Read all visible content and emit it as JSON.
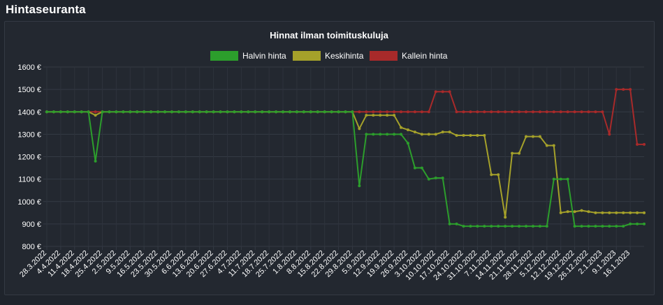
{
  "page": {
    "section_title": "Hintaseuranta"
  },
  "chart_data": {
    "type": "line",
    "title": "Hinnat ilman toimituskuluja",
    "xlabel": "",
    "ylabel": "",
    "y_unit": "€",
    "ylim": [
      800,
      1600
    ],
    "y_ticks": [
      800,
      900,
      1000,
      1100,
      1200,
      1300,
      1400,
      1500,
      1600
    ],
    "y_tick_labels": [
      "800 €",
      "900 €",
      "1000 €",
      "1100 €",
      "1200 €",
      "1300 €",
      "1400 €",
      "1500 €",
      "1600 €"
    ],
    "grid": true,
    "legend_position": "top",
    "categories": [
      "28.3.2022",
      "4.4.2022",
      "11.4.2022",
      "18.4.2022",
      "25.4.2022",
      "2.5.2022",
      "9.5.2022",
      "16.5.2022",
      "23.5.2022",
      "30.5.2022",
      "6.6.2022",
      "13.6.2022",
      "20.6.2022",
      "27.6.2022",
      "4.7.2022",
      "11.7.2022",
      "18.7.2022",
      "25.7.2022",
      "1.8.2022",
      "8.8.2022",
      "15.8.2022",
      "22.8.2022",
      "29.8.2022",
      "5.9.2022",
      "12.9.2022",
      "19.9.2022",
      "26.9.2022",
      "3.10.2022",
      "10.10.2022",
      "17.10.2022",
      "24.10.2022",
      "31.10.2022",
      "7.11.2022",
      "14.11.2022",
      "21.11.2022",
      "28.11.2022",
      "5.12.2022",
      "12.12.2022",
      "19.12.2022",
      "26.12.2022",
      "2.1.2023",
      "9.1.2023",
      "16.1.2023"
    ],
    "x": [
      0,
      1,
      2,
      3,
      4,
      5,
      6,
      7,
      8,
      9,
      10,
      11,
      12,
      13,
      14,
      15,
      16,
      17,
      18,
      19,
      20,
      21,
      22,
      23,
      24,
      25,
      26,
      27,
      28,
      29,
      30,
      31,
      32,
      33,
      34,
      35,
      36,
      37,
      38,
      39,
      40,
      41,
      42,
      43,
      44,
      45,
      46,
      47,
      48,
      49,
      50,
      51,
      52,
      53,
      54,
      55,
      56,
      57,
      58,
      59,
      60,
      61,
      62,
      63,
      64,
      65,
      66,
      67,
      68,
      69,
      70,
      71,
      72,
      73,
      74,
      75,
      76,
      77,
      78,
      79,
      80,
      81,
      82,
      83,
      84,
      85,
      86
    ],
    "series": [
      {
        "name": "Kallein hinta",
        "color": "#a82a2a",
        "values": [
          1400,
          1400,
          1400,
          1400,
          1400,
          1400,
          1400,
          1400,
          1400,
          1400,
          1400,
          1400,
          1400,
          1400,
          1400,
          1400,
          1400,
          1400,
          1400,
          1400,
          1400,
          1400,
          1400,
          1400,
          1400,
          1400,
          1400,
          1400,
          1400,
          1400,
          1400,
          1400,
          1400,
          1400,
          1400,
          1400,
          1400,
          1400,
          1400,
          1400,
          1400,
          1400,
          1400,
          1400,
          1400,
          1400,
          1400,
          1400,
          1400,
          1400,
          1400,
          1400,
          1400,
          1400,
          1400,
          1400,
          1490,
          1490,
          1490,
          1400,
          1400,
          1400,
          1400,
          1400,
          1400,
          1400,
          1400,
          1400,
          1400,
          1400,
          1400,
          1400,
          1400,
          1400,
          1400,
          1400,
          1400,
          1400,
          1400,
          1400,
          1400,
          1300,
          1500,
          1500,
          1500,
          1255,
          1255
        ]
      },
      {
        "name": "Keskihinta",
        "color": "#a5a12a",
        "values": [
          1400,
          1400,
          1400,
          1400,
          1400,
          1400,
          1400,
          1385,
          1400,
          1400,
          1400,
          1400,
          1400,
          1400,
          1400,
          1400,
          1400,
          1400,
          1400,
          1400,
          1400,
          1400,
          1400,
          1400,
          1400,
          1400,
          1400,
          1400,
          1400,
          1400,
          1400,
          1400,
          1400,
          1400,
          1400,
          1400,
          1400,
          1400,
          1400,
          1400,
          1400,
          1400,
          1400,
          1400,
          1400,
          1325,
          1385,
          1385,
          1385,
          1385,
          1385,
          1330,
          1320,
          1310,
          1300,
          1300,
          1300,
          1310,
          1310,
          1295,
          1295,
          1295,
          1295,
          1295,
          1120,
          1120,
          930,
          1215,
          1215,
          1290,
          1290,
          1290,
          1250,
          1250,
          950,
          955,
          955,
          960,
          955,
          950,
          950,
          950,
          950,
          950,
          950,
          950,
          950
        ]
      },
      {
        "name": "Halvin hinta",
        "color": "#2c9e2c",
        "values": [
          1400,
          1400,
          1400,
          1400,
          1400,
          1400,
          1400,
          1180,
          1400,
          1400,
          1400,
          1400,
          1400,
          1400,
          1400,
          1400,
          1400,
          1400,
          1400,
          1400,
          1400,
          1400,
          1400,
          1400,
          1400,
          1400,
          1400,
          1400,
          1400,
          1400,
          1400,
          1400,
          1400,
          1400,
          1400,
          1400,
          1400,
          1400,
          1400,
          1400,
          1400,
          1400,
          1400,
          1400,
          1400,
          1070,
          1300,
          1300,
          1300,
          1300,
          1300,
          1300,
          1260,
          1150,
          1150,
          1100,
          1105,
          1105,
          900,
          900,
          890,
          890,
          890,
          890,
          890,
          890,
          890,
          890,
          890,
          890,
          890,
          890,
          890,
          1100,
          1100,
          1100,
          890,
          890,
          890,
          890,
          890,
          890,
          890,
          890,
          900,
          900,
          900
        ]
      }
    ],
    "legend": [
      {
        "name": "Halvin hinta",
        "color": "#2c9e2c"
      },
      {
        "name": "Keskihinta",
        "color": "#a5a12a"
      },
      {
        "name": "Kallein hinta",
        "color": "#a82a2a"
      }
    ]
  }
}
